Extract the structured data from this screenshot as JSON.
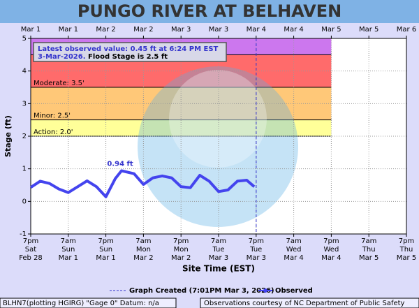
{
  "chart_data": {
    "type": "line",
    "title": "PUNGO RIVER AT BELHAVEN",
    "y_label": "Stage (ft)",
    "x_label": "Site Time (EST)",
    "ylim": [
      -1,
      5
    ],
    "yticks": [
      -1,
      0,
      1,
      2,
      3,
      4,
      5
    ],
    "xlim": [
      "2026-02-28T19:00-05:00",
      "2026-03-05T19:00-05:00"
    ],
    "xticks": [
      {
        "value": "2026-02-28T19:00-05:00",
        "label": [
          "7pm",
          "Sat",
          "Feb 28"
        ]
      },
      {
        "value": "2026-03-01T07:00-05:00",
        "label": [
          "7am",
          "Sun",
          "Mar 1"
        ]
      },
      {
        "value": "2026-03-01T19:00-05:00",
        "label": [
          "7pm",
          "Sun",
          "Mar 1"
        ]
      },
      {
        "value": "2026-03-02T07:00-05:00",
        "label": [
          "7am",
          "Mon",
          "Mar 2"
        ]
      },
      {
        "value": "2026-03-02T19:00-05:00",
        "label": [
          "7pm",
          "Mon",
          "Mar 2"
        ]
      },
      {
        "value": "2026-03-03T07:00-05:00",
        "label": [
          "7am",
          "Tue",
          "Mar 3"
        ]
      },
      {
        "value": "2026-03-03T19:00-05:00",
        "label": [
          "7pm",
          "Tue",
          "Mar 3"
        ]
      },
      {
        "value": "2026-03-04T07:00-05:00",
        "label": [
          "7am",
          "Wed",
          "Mar 4"
        ]
      },
      {
        "value": "2026-03-04T19:00-05:00",
        "label": [
          "7pm",
          "Wed",
          "Mar 4"
        ]
      },
      {
        "value": "2026-03-05T07:00-05:00",
        "label": [
          "7am",
          "Thu",
          "Mar 5"
        ]
      },
      {
        "value": "2026-03-05T19:00-05:00",
        "label": [
          "7pm",
          "Thu",
          "Mar 5"
        ]
      }
    ],
    "x2ticks": [
      {
        "value": "2026-03-01T00:00Z",
        "label": "Mar 1"
      },
      {
        "value": "2026-03-01T12:00Z",
        "label": "Mar 1"
      },
      {
        "value": "2026-03-02T00:00Z",
        "label": "Mar 2"
      },
      {
        "value": "2026-03-02T12:00Z",
        "label": "Mar 2"
      },
      {
        "value": "2026-03-03T00:00Z",
        "label": "Mar 3"
      },
      {
        "value": "2026-03-03T12:00Z",
        "label": "Mar 3"
      },
      {
        "value": "2026-03-04T00:00Z",
        "label": "Mar 4"
      },
      {
        "value": "2026-03-04T12:00Z",
        "label": "Mar 4"
      },
      {
        "value": "2026-03-05T00:00Z",
        "label": "Mar 5"
      },
      {
        "value": "2026-03-05T12:00Z",
        "label": "Mar 5"
      },
      {
        "value": "2026-03-06T00:00Z",
        "label": "Mar 6"
      }
    ],
    "grid": true,
    "flood_categories": [
      {
        "label": "Action: 2.0'",
        "value": 2.0,
        "top": 2.5,
        "color": "#ffff99"
      },
      {
        "label": "Minor: 2.5'",
        "value": 2.5,
        "top": 3.5,
        "color": "#ffc878"
      },
      {
        "label": "Moderate: 3.5'",
        "value": 3.5,
        "top": 4.5,
        "color": "#ff6b6b"
      },
      {
        "value": 4.5,
        "top": 5,
        "color": "#cc77ee"
      }
    ],
    "graph_created": {
      "x": "2026-03-03T19:01-05:00",
      "label": "Graph Created (7:01PM Mar 3, 2026)",
      "color": "#3333cc"
    },
    "series": [
      {
        "name": "Observed",
        "color": "#4444ee",
        "x": [
          "2026-02-28T19:00-05:00",
          "2026-02-28T22:00-05:00",
          "2026-03-01T01:00-05:00",
          "2026-03-01T04:00-05:00",
          "2026-03-01T07:00-05:00",
          "2026-03-01T10:00-05:00",
          "2026-03-01T13:00-05:00",
          "2026-03-01T16:00-05:00",
          "2026-03-01T19:00-05:00",
          "2026-03-01T22:00-05:00",
          "2026-03-02T00:00-05:00",
          "2026-03-02T04:00-05:00",
          "2026-03-02T07:00-05:00",
          "2026-03-02T10:00-05:00",
          "2026-03-02T13:00-05:00",
          "2026-03-02T16:00-05:00",
          "2026-03-02T19:00-05:00",
          "2026-03-02T22:00-05:00",
          "2026-03-03T01:00-05:00",
          "2026-03-03T04:00-05:00",
          "2026-03-03T07:00-05:00",
          "2026-03-03T10:00-05:00",
          "2026-03-03T13:00-05:00",
          "2026-03-03T16:00-05:00",
          "2026-03-03T18:24-05:00"
        ],
        "values": [
          0.43,
          0.62,
          0.55,
          0.38,
          0.27,
          0.45,
          0.63,
          0.45,
          0.14,
          0.7,
          0.94,
          0.85,
          0.52,
          0.72,
          0.78,
          0.72,
          0.45,
          0.42,
          0.8,
          0.62,
          0.3,
          0.35,
          0.62,
          0.65,
          0.45
        ]
      }
    ],
    "peak_label": "0.94 ft",
    "info": {
      "line1": "Latest observed value: 0.45 ft at 6:24 PM EST",
      "line2": "3-Mar-2026.",
      "flood_stage": "Flood Stage is 2.5 ft"
    }
  },
  "footer": {
    "left": "BLHN7(plotting HGIRG) \"Gage 0\" Datum: n/a",
    "right": "Observations courtesy of NC Department of Public Safety"
  }
}
